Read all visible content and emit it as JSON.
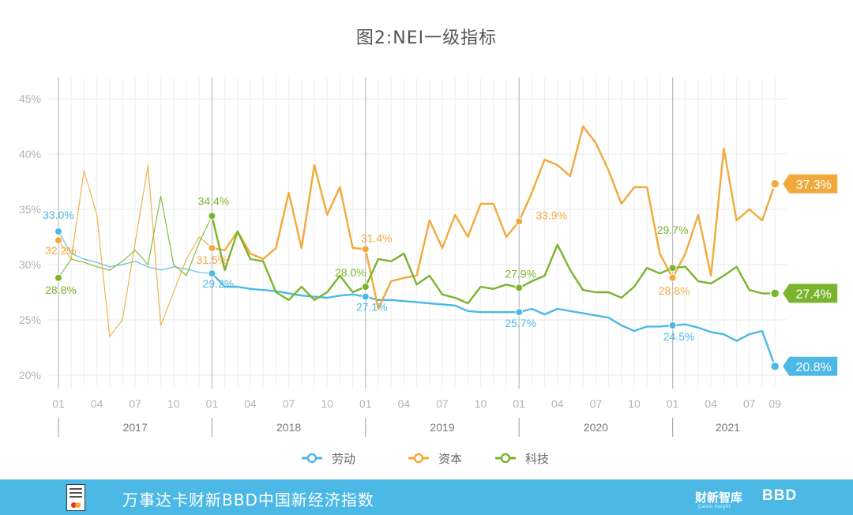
{
  "chart_data": {
    "type": "line",
    "title": "图2:NEI一级指标",
    "ylim": [
      20,
      45
    ],
    "yticks": [
      20,
      25,
      30,
      35,
      40,
      45
    ],
    "ytick_labels": [
      "20%",
      "25%",
      "30%",
      "35%",
      "40%",
      "45%"
    ],
    "x_month_labels": [
      "01",
      "04",
      "07",
      "10",
      "01",
      "04",
      "07",
      "10",
      "01",
      "04",
      "07",
      "10",
      "01",
      "04",
      "07",
      "10",
      "01",
      "04",
      "07",
      "09"
    ],
    "year_labels": [
      "2017",
      "2018",
      "2019",
      "2020",
      "2021"
    ],
    "series": [
      {
        "name": "劳动",
        "color": "#4cb8e6",
        "values": [
          33.0,
          31.0,
          30.5,
          30.2,
          29.8,
          30.0,
          30.3,
          29.8,
          29.5,
          29.8,
          29.6,
          29.3,
          29.2,
          28.0,
          28.0,
          27.8,
          27.7,
          27.6,
          27.4,
          27.2,
          27.1,
          27.0,
          27.2,
          27.3,
          27.1,
          26.8,
          26.8,
          26.7,
          26.6,
          26.5,
          26.4,
          26.3,
          25.8,
          25.7,
          25.7,
          25.7,
          25.7,
          26.0,
          25.5,
          26.0,
          25.8,
          25.6,
          25.4,
          25.2,
          24.5,
          24.0,
          24.4,
          24.4,
          24.5,
          24.6,
          24.3,
          23.9,
          23.7,
          23.1,
          23.7,
          24.0,
          20.8
        ],
        "labels": [
          {
            "index": 0,
            "text": "33.0%"
          },
          {
            "index": 12,
            "text": "29.2%"
          },
          {
            "index": 24,
            "text": "27.1%"
          },
          {
            "index": 36,
            "text": "25.7%"
          },
          {
            "index": 48,
            "text": "24.5%"
          }
        ],
        "end_label": "20.8%"
      },
      {
        "name": "资本",
        "color": "#f2a93b",
        "values": [
          32.2,
          30.5,
          38.5,
          34.5,
          23.5,
          25.0,
          32.0,
          39.0,
          24.5,
          27.5,
          30.5,
          32.5,
          31.5,
          31.3,
          33.0,
          31.0,
          30.5,
          31.5,
          36.5,
          31.5,
          39.0,
          34.5,
          37.0,
          31.5,
          31.4,
          26.0,
          28.5,
          28.8,
          29.0,
          34.0,
          31.5,
          34.5,
          32.5,
          35.5,
          35.5,
          32.5,
          33.9,
          36.5,
          39.5,
          39.0,
          38.0,
          42.5,
          41.0,
          38.5,
          35.5,
          37.0,
          37.0,
          31.0,
          28.8,
          31.0,
          34.5,
          29.0,
          40.5,
          34.0,
          35.0,
          34.0,
          37.3
        ],
        "labels": [
          {
            "index": 0,
            "text": "32.2%"
          },
          {
            "index": 12,
            "text": "31.5%"
          },
          {
            "index": 24,
            "text": "31.4%"
          },
          {
            "index": 36,
            "text": "33.9%"
          },
          {
            "index": 48,
            "text": "28.8%"
          }
        ],
        "end_label": "37.3%"
      },
      {
        "name": "科技",
        "color": "#7ab42d",
        "values": [
          28.8,
          30.5,
          30.2,
          29.8,
          29.5,
          30.3,
          31.3,
          30.0,
          36.2,
          30.0,
          29.0,
          32.0,
          34.4,
          29.5,
          33.0,
          30.5,
          30.3,
          27.5,
          26.8,
          28.0,
          26.8,
          27.5,
          29.0,
          27.5,
          28.0,
          30.5,
          30.3,
          31.0,
          28.2,
          29.0,
          27.3,
          27.0,
          26.5,
          28.0,
          27.8,
          28.2,
          27.9,
          28.5,
          29.0,
          31.8,
          29.5,
          27.7,
          27.5,
          27.5,
          27.0,
          28.0,
          29.7,
          29.2,
          29.7,
          29.8,
          28.5,
          28.3,
          29.0,
          29.8,
          27.7,
          27.4,
          27.4
        ],
        "labels": [
          {
            "index": 0,
            "text": "28.8%"
          },
          {
            "index": 12,
            "text": "34.4%"
          },
          {
            "index": 24,
            "text": "28.0%"
          },
          {
            "index": 36,
            "text": "27.9%"
          },
          {
            "index": 48,
            "text": "29.7%"
          }
        ],
        "end_label": "27.4%"
      }
    ],
    "legend": [
      "劳动",
      "资本",
      "科技"
    ]
  },
  "footer": {
    "logo_text": "NEI",
    "text": "万事达卡财新BBD中国新经济指数",
    "brand1": "财新智库",
    "brand1_sub": "Caixin Insight",
    "brand2": "BBD"
  }
}
